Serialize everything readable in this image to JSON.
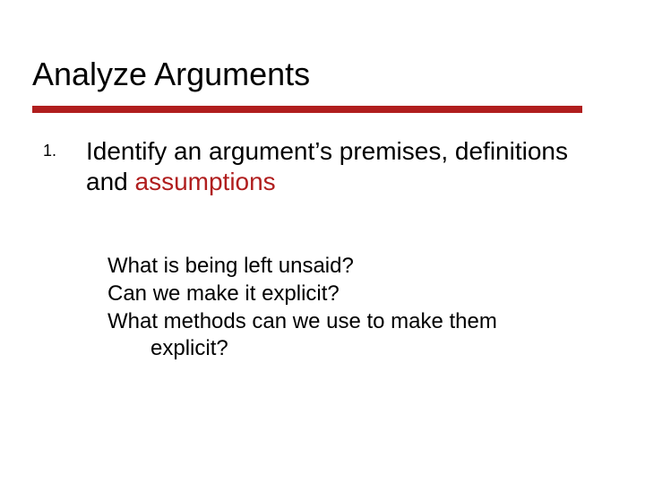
{
  "title": "Analyze Arguments",
  "rule_color": "#b01e1e",
  "emphasis_color": "#b01e1e",
  "title_fontsize": 36,
  "body_fontsize": 28,
  "sub_fontsize": 24,
  "list": {
    "number": "1.",
    "main_prefix": "Identify an argument’s premises, definitions and ",
    "main_emph": "assumptions",
    "sub_q1": "What is being left unsaid?",
    "sub_q2": "Can we make it explicit?",
    "sub_q3_line1": "What methods can we use to make them",
    "sub_q3_line2": "explicit?"
  }
}
